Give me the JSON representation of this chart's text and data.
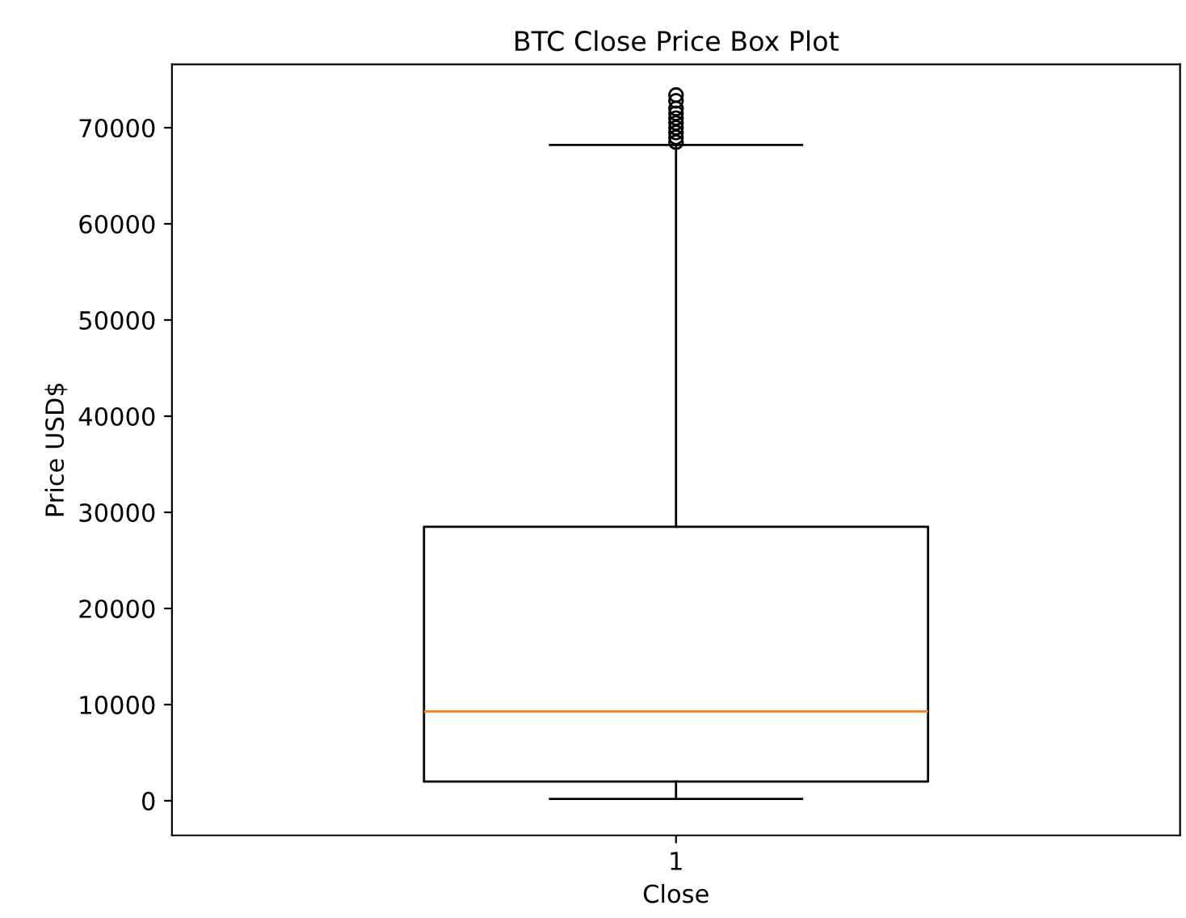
{
  "chart_data": {
    "type": "box",
    "title": "BTC Close Price Box Plot",
    "xlabel": "Close",
    "ylabel": "Price USD$",
    "categories": [
      "1"
    ],
    "boxes": [
      {
        "low": 200,
        "q1": 2000,
        "median": 9300,
        "q3": 28500,
        "high": 68200,
        "outliers": [
          68500,
          69000,
          69500,
          70000,
          70500,
          71000,
          71500,
          72000,
          72800,
          73400
        ]
      }
    ],
    "ylim": [
      -3600,
      76600
    ],
    "yticks": [
      0,
      10000,
      20000,
      30000,
      40000,
      50000,
      60000,
      70000
    ],
    "grid": false
  }
}
